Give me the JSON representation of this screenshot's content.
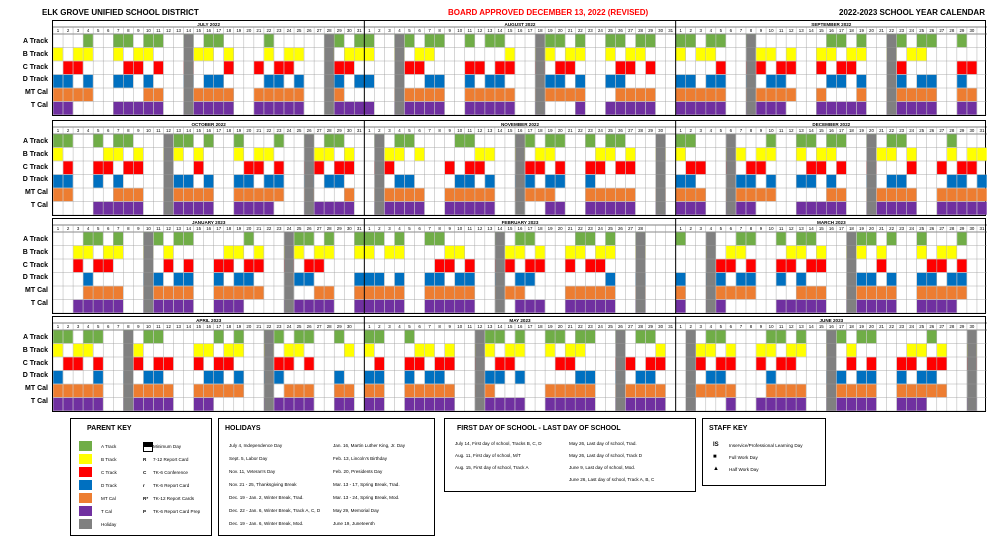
{
  "header": {
    "district": "ELK GROVE UNIFIED SCHOOL DISTRICT",
    "approved": "BOARD APPROVED DECEMBER 13, 2022 (REVISED)",
    "year": "2022-2023 SCHOOL YEAR CALENDAR"
  },
  "colors": {
    "A": "#70ad47",
    "B": "#ffff00",
    "C": "#ff0000",
    "D": "#0070c0",
    "MT": "#ed7d31",
    "T": "#7030a0",
    "holiday": "#808080",
    "black": "#000000"
  },
  "track_labels": [
    "A Track",
    "B Track",
    "C Track",
    "D Track",
    "MT Cal",
    "T Cal"
  ],
  "blocks": [
    {
      "months": [
        {
          "name": "JULY 2022",
          "days": 31
        },
        {
          "name": "AUGUST 2022",
          "days": 31
        },
        {
          "name": "SEPTEMBER 2022",
          "days": 30
        }
      ]
    },
    {
      "months": [
        {
          "name": "OCTOBER 2022",
          "days": 31
        },
        {
          "name": "NOVEMBER 2022",
          "days": 30
        },
        {
          "name": "DECEMBER 2022",
          "days": 31
        }
      ]
    },
    {
      "months": [
        {
          "name": "JANUARY 2023",
          "days": 31
        },
        {
          "name": "FEBRUARY 2023",
          "days": 28
        },
        {
          "name": "MARCH 2023",
          "days": 31
        }
      ]
    },
    {
      "months": [
        {
          "name": "APRIL 2023",
          "days": 30
        },
        {
          "name": "MAY 2023",
          "days": 31
        },
        {
          "name": "JUNE 2023",
          "days": 30
        }
      ]
    }
  ],
  "parent_key": {
    "title": "PARENT KEY",
    "items": [
      {
        "label": "A Track",
        "color": "#70ad47"
      },
      {
        "label": "B Track",
        "color": "#ffff00"
      },
      {
        "label": "C Track",
        "color": "#ff0000"
      },
      {
        "label": "D Track",
        "color": "#0070c0"
      },
      {
        "label": "MT Cal",
        "color": "#ed7d31"
      },
      {
        "label": "T Cal",
        "color": "#7030a0"
      },
      {
        "label": "Holiday",
        "color": "#808080"
      }
    ],
    "codes": [
      {
        "sym": "",
        "label": "Minimum Day"
      },
      {
        "sym": "R",
        "label": "7-12 Report Card"
      },
      {
        "sym": "C",
        "label": "TK-6 Conference"
      },
      {
        "sym": "r",
        "label": "TK-6 Report Card"
      },
      {
        "sym": "R*",
        "label": "TK-12 Report Cards"
      },
      {
        "sym": "P",
        "label": "TK-6 Report Card Prep"
      }
    ]
  },
  "holidays": {
    "title": "HOLIDAYS",
    "col1": [
      "July 4, Independence Day",
      "Sept. 5, Labor Day",
      "Nov. 11, Veteran's Day",
      "Nov. 21 - 25, Thanksgiving Break",
      "Dec. 19 - Jan. 2, Winter Break, Trad.",
      "Dec. 22 - Jan. 6, Winter Break, Track A, C, D",
      "Dec. 19 - Jan. 6, Winter Break, Mod."
    ],
    "col2": [
      "Jan. 16, Martin Luther King, Jr. Day",
      "Feb. 13, Lincoln's Birthday",
      "Feb. 20, Presidents Day",
      "Mar. 13 - 17, Spring Break, Trad.",
      "Mar. 13 - 24, Spring Break, Mod.",
      "May 29, Memorial Day",
      "June 19, Juneteenth"
    ]
  },
  "first_last": {
    "title": "FIRST DAY OF SCHOOL - LAST DAY OF SCHOOL",
    "col1": [
      "July 14, First day of school, Tracks B, C, D",
      "Aug. 11, First day of school, M/T",
      "Aug. 15, First day of school, Track A"
    ],
    "col2": [
      "May 26, Last day of school, Trad.",
      "May 26, Last day of school, Track D",
      "June 9, Last day of school, Mod.",
      "June 26, Last day of school, Track A, B, C"
    ]
  },
  "staff_key": {
    "title": "STAFF KEY",
    "items": [
      {
        "sym": "IS",
        "label": "Inservice/Professional Learning Day"
      },
      {
        "sym": "■",
        "label": "Full Work Day"
      },
      {
        "sym": "▲",
        "label": "Half Work Day"
      }
    ]
  }
}
